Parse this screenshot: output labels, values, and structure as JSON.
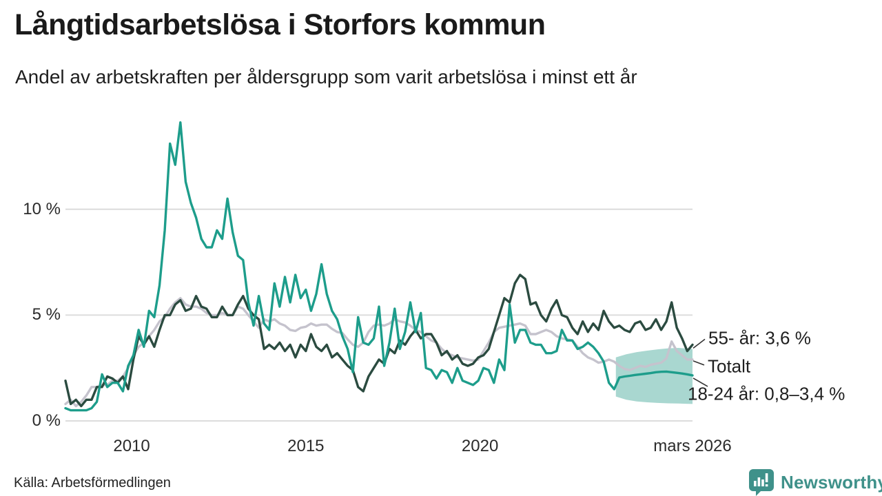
{
  "title": "Långtidsarbetslösa i Storfors kommun",
  "subtitle": "Andel av arbetskraften per åldersgrupp som varit arbetslösa i minst ett år",
  "source": "Källa: Arbetsförmedlingen",
  "brand": {
    "name": "Newsworthy"
  },
  "colors": {
    "teal_line": "#1d9d8b",
    "dark_green_line": "#2b4b40",
    "gray_line": "#c5c3cd",
    "forecast_band": "#a9d7d0",
    "gridline": "#dcdcdc",
    "connector": "#333333",
    "brand_teal": "#3f918a"
  },
  "chart_data": {
    "type": "line",
    "title": "Långtidsarbetslösa i Storfors kommun",
    "subtitle": "Andel av arbetskraften per åldersgrupp som varit arbetslösa i minst ett år",
    "x_unit": "year (monthly series)",
    "y_unit": "percent of labour force",
    "x_start": 2008.1,
    "x_step": 0.15,
    "x_axis": {
      "ticks": [
        {
          "t": 2010,
          "label": "2010"
        },
        {
          "t": 2015,
          "label": "2015"
        },
        {
          "t": 2020,
          "label": "2020"
        },
        {
          "t": 2026.1,
          "label": "mars 2026"
        }
      ]
    },
    "y_axis": {
      "ticks": [
        {
          "v": 0,
          "label": "0 %"
        },
        {
          "v": 5,
          "label": "5 %"
        },
        {
          "v": 10,
          "label": "10 %"
        }
      ],
      "range": [
        0,
        14.4
      ],
      "grid": true
    },
    "series": [
      {
        "name": "18-24 år",
        "color": "#1d9d8b",
        "end_label": "18-24 år: 0,8–3,4 %",
        "values": [
          0.6,
          0.5,
          0.5,
          0.5,
          0.5,
          0.6,
          0.9,
          2.2,
          1.6,
          1.8,
          1.8,
          1.4,
          2.6,
          3.1,
          4.3,
          3.5,
          5.2,
          4.9,
          6.4,
          9.0,
          13.1,
          12.1,
          14.1,
          11.3,
          10.3,
          9.6,
          8.6,
          8.2,
          8.2,
          9.0,
          8.6,
          10.5,
          8.9,
          7.8,
          7.6,
          5.6,
          4.5,
          5.9,
          4.6,
          4.3,
          6.5,
          5.4,
          6.8,
          5.6,
          6.9,
          5.8,
          6.2,
          5.2,
          6.0,
          7.4,
          6.0,
          5.2,
          4.8,
          4.0,
          3.4,
          2.3,
          4.9,
          3.7,
          3.6,
          3.9,
          5.4,
          2.6,
          3.7,
          5.3,
          3.4,
          4.2,
          5.6,
          4.2,
          5.1,
          2.5,
          2.4,
          2.0,
          2.4,
          2.3,
          1.8,
          2.5,
          1.9,
          1.8,
          1.7,
          1.9,
          2.5,
          2.4,
          1.8,
          2.9,
          2.4,
          5.5,
          3.7,
          4.3,
          4.3,
          3.7,
          3.6,
          3.6,
          3.2,
          3.2,
          3.3,
          4.3,
          3.8,
          3.8,
          3.4,
          3.5,
          3.7,
          3.5,
          3.2,
          2.8,
          1.8,
          1.5,
          2.05,
          2.1,
          2.13,
          2.17,
          2.2,
          2.23,
          2.26,
          2.3,
          2.32,
          2.33,
          2.3,
          2.27,
          2.24,
          2.2,
          2.15
        ]
      },
      {
        "name": "55- år",
        "color": "#2b4b40",
        "end_label": "55- år: 3,6 %",
        "values": [
          1.9,
          0.8,
          1.0,
          0.7,
          1.0,
          1.0,
          1.6,
          1.6,
          2.1,
          2.0,
          1.8,
          2.1,
          1.5,
          2.9,
          4.0,
          3.6,
          4.0,
          3.5,
          4.3,
          5.0,
          5.0,
          5.5,
          5.7,
          5.2,
          5.3,
          5.9,
          5.4,
          5.3,
          4.9,
          4.9,
          5.4,
          5.0,
          5.0,
          5.5,
          5.9,
          5.3,
          5.0,
          4.8,
          3.4,
          3.6,
          3.4,
          3.7,
          3.3,
          3.6,
          3.0,
          3.6,
          3.3,
          4.1,
          3.5,
          3.3,
          3.6,
          3.0,
          3.2,
          2.9,
          2.6,
          2.4,
          1.6,
          1.4,
          2.1,
          2.5,
          2.9,
          2.7,
          3.4,
          3.2,
          3.8,
          3.6,
          4.0,
          4.3,
          3.9,
          4.1,
          4.1,
          3.7,
          3.1,
          3.3,
          2.9,
          3.1,
          2.7,
          2.6,
          2.7,
          3.0,
          3.1,
          3.4,
          4.2,
          5.0,
          5.8,
          5.6,
          6.5,
          6.9,
          6.7,
          5.5,
          5.6,
          5.0,
          4.7,
          5.3,
          5.7,
          5.0,
          4.9,
          4.4,
          4.1,
          4.7,
          4.2,
          4.6,
          4.3,
          5.2,
          4.7,
          4.4,
          4.5,
          4.3,
          4.2,
          4.6,
          4.7,
          4.3,
          4.4,
          4.8,
          4.3,
          4.7,
          5.6,
          4.4,
          3.9,
          3.3,
          3.6
        ]
      },
      {
        "name": "Totalt",
        "color": "#c5c3cd",
        "end_label": "Totalt",
        "values": [
          0.8,
          1.0,
          0.7,
          0.9,
          1.2,
          1.6,
          1.6,
          1.7,
          1.7,
          1.9,
          1.9,
          2.1,
          2.5,
          3.1,
          3.5,
          3.7,
          4.0,
          4.3,
          4.7,
          4.9,
          5.3,
          5.6,
          5.8,
          5.5,
          5.4,
          5.4,
          5.3,
          5.1,
          5.0,
          5.0,
          5.1,
          5.0,
          5.0,
          5.4,
          5.3,
          5.0,
          4.7,
          4.4,
          4.8,
          4.7,
          4.8,
          4.6,
          4.5,
          4.3,
          4.25,
          4.4,
          4.45,
          4.6,
          4.5,
          4.55,
          4.55,
          4.35,
          4.2,
          4.15,
          3.85,
          3.6,
          3.5,
          3.7,
          4.2,
          4.5,
          4.55,
          4.5,
          4.6,
          4.8,
          4.7,
          4.65,
          4.5,
          4.3,
          4.2,
          4.0,
          3.8,
          3.7,
          3.4,
          3.2,
          3.1,
          3.0,
          2.95,
          2.9,
          2.85,
          2.9,
          3.3,
          3.7,
          4.2,
          4.4,
          4.45,
          4.5,
          4.55,
          4.6,
          4.5,
          4.1,
          4.1,
          4.2,
          4.3,
          4.2,
          4.0,
          3.9,
          3.85,
          3.8,
          3.5,
          3.2,
          3.0,
          2.9,
          2.75,
          2.8,
          2.9,
          2.8,
          2.6,
          2.45,
          2.4,
          2.5,
          2.6,
          2.55,
          2.65,
          2.7,
          2.75,
          2.95,
          3.75,
          3.3,
          3.1,
          2.9,
          2.9
        ]
      }
    ],
    "forecast_band": {
      "series": "18-24 år",
      "color": "#a9d7d0",
      "x": [
        2023.9,
        2024.2,
        2024.5,
        2024.8,
        2025.1,
        2025.4,
        2025.7,
        2025.9,
        2026.1
      ],
      "upper": [
        3.0,
        3.15,
        3.25,
        3.32,
        3.38,
        3.43,
        3.45,
        3.42,
        3.4
      ],
      "lower": [
        1.15,
        1.0,
        0.92,
        0.88,
        0.85,
        0.83,
        0.82,
        0.81,
        0.8
      ]
    },
    "annotations": [
      {
        "text": "55- år: 3,6 %",
        "series_index": 1
      },
      {
        "text": "Totalt",
        "series_index": 2
      },
      {
        "text": "18-24 år: 0,8–3,4 %",
        "series_index": 0
      }
    ],
    "legend_position": "right-end-labels"
  }
}
